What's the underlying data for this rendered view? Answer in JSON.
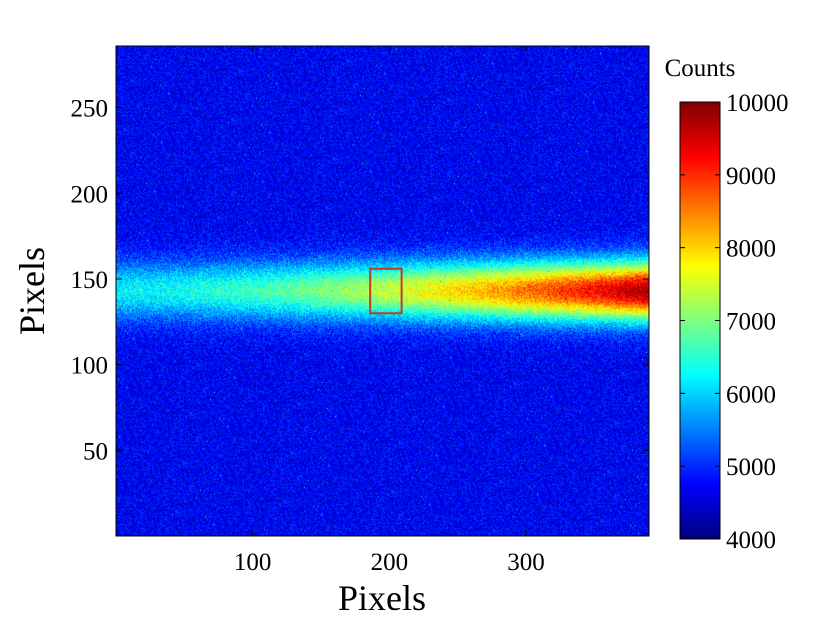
{
  "chart_data": {
    "type": "heatmap",
    "title": "",
    "xlabel": "Pixels",
    "ylabel": "Pixels",
    "xlim": [
      0,
      390
    ],
    "ylim": [
      0,
      286
    ],
    "xticks": [
      100,
      200,
      300
    ],
    "yticks": [
      50,
      100,
      150,
      200,
      250
    ],
    "colorbar": {
      "label": "Counts",
      "range": [
        4000,
        10000
      ],
      "ticks": [
        4000,
        5000,
        6000,
        7000,
        8000,
        9000,
        10000
      ],
      "colormap": "jet"
    },
    "band": {
      "center_y": 143,
      "width_y": 12,
      "peak_counts_start": 6200,
      "peak_counts_end": 9800,
      "background_counts": 4700
    },
    "roi_box": {
      "x_range": [
        186,
        209
      ],
      "y_range": [
        130,
        156
      ],
      "color": "#c0392b"
    }
  }
}
